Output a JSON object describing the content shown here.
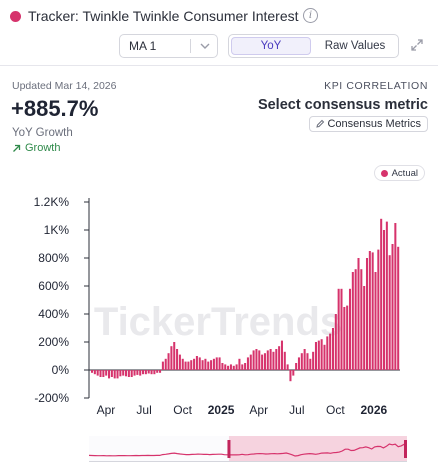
{
  "header": {
    "title": "Tracker: Twinkle Twinkle Consumer Interest",
    "dot_color": "#d6336c",
    "info_icon": "info-icon",
    "ma_select": {
      "value": "MA 1"
    },
    "toggle": {
      "options": [
        "YoY",
        "Raw Values"
      ],
      "selected": "YoY"
    },
    "expand_icon": "expand-icon"
  },
  "summary": {
    "updated": "Updated Mar 14, 2026",
    "kpi_correlation": "KPI CORRELATION",
    "value": "+885.7%",
    "value_label": "YoY Growth",
    "growth_label": "Growth",
    "select_consensus": "Select consensus metric",
    "consensus_button": "Consensus Metrics"
  },
  "legend": {
    "label": "Actual",
    "color": "#d6336c"
  },
  "watermark": "TickerTrends",
  "chart_data": {
    "type": "bar",
    "series": [
      {
        "name": "Actual",
        "color": "#d6336c"
      }
    ],
    "yticks": [
      "1.2K%",
      "1K%",
      "800%",
      "600%",
      "400%",
      "200%",
      "0%",
      "-200%"
    ],
    "ylim": [
      -200,
      1200
    ],
    "xticks": [
      "Apr",
      "Jul",
      "Oct",
      "2025",
      "Apr",
      "Jul",
      "Oct",
      "2026"
    ],
    "x_start": "2024-03-01",
    "x_end": "2026-03-14",
    "weekly_values": [
      -20,
      -30,
      -40,
      -50,
      -50,
      -40,
      -60,
      -50,
      -60,
      -60,
      -45,
      -40,
      -45,
      -50,
      -50,
      -40,
      -35,
      -40,
      -30,
      -30,
      -25,
      -30,
      -30,
      -20,
      -20,
      60,
      80,
      120,
      170,
      200,
      150,
      110,
      80,
      60,
      60,
      70,
      80,
      100,
      90,
      70,
      80,
      60,
      70,
      80,
      90,
      90,
      50,
      40,
      30,
      40,
      30,
      40,
      80,
      40,
      50,
      90,
      110,
      140,
      150,
      140,
      110,
      120,
      140,
      150,
      130,
      150,
      170,
      210,
      130,
      40,
      -80,
      -40,
      50,
      90,
      120,
      150,
      120,
      80,
      130,
      200,
      210,
      220,
      180,
      240,
      260,
      300,
      400,
      580,
      580,
      450,
      460,
      580,
      700,
      720,
      800,
      720,
      600,
      800,
      850,
      840,
      700,
      860,
      1080,
      1000,
      1060,
      820,
      900,
      1050,
      880
    ],
    "navigator": {
      "range": [
        "2025-01-22",
        "2026-03-14"
      ]
    }
  }
}
